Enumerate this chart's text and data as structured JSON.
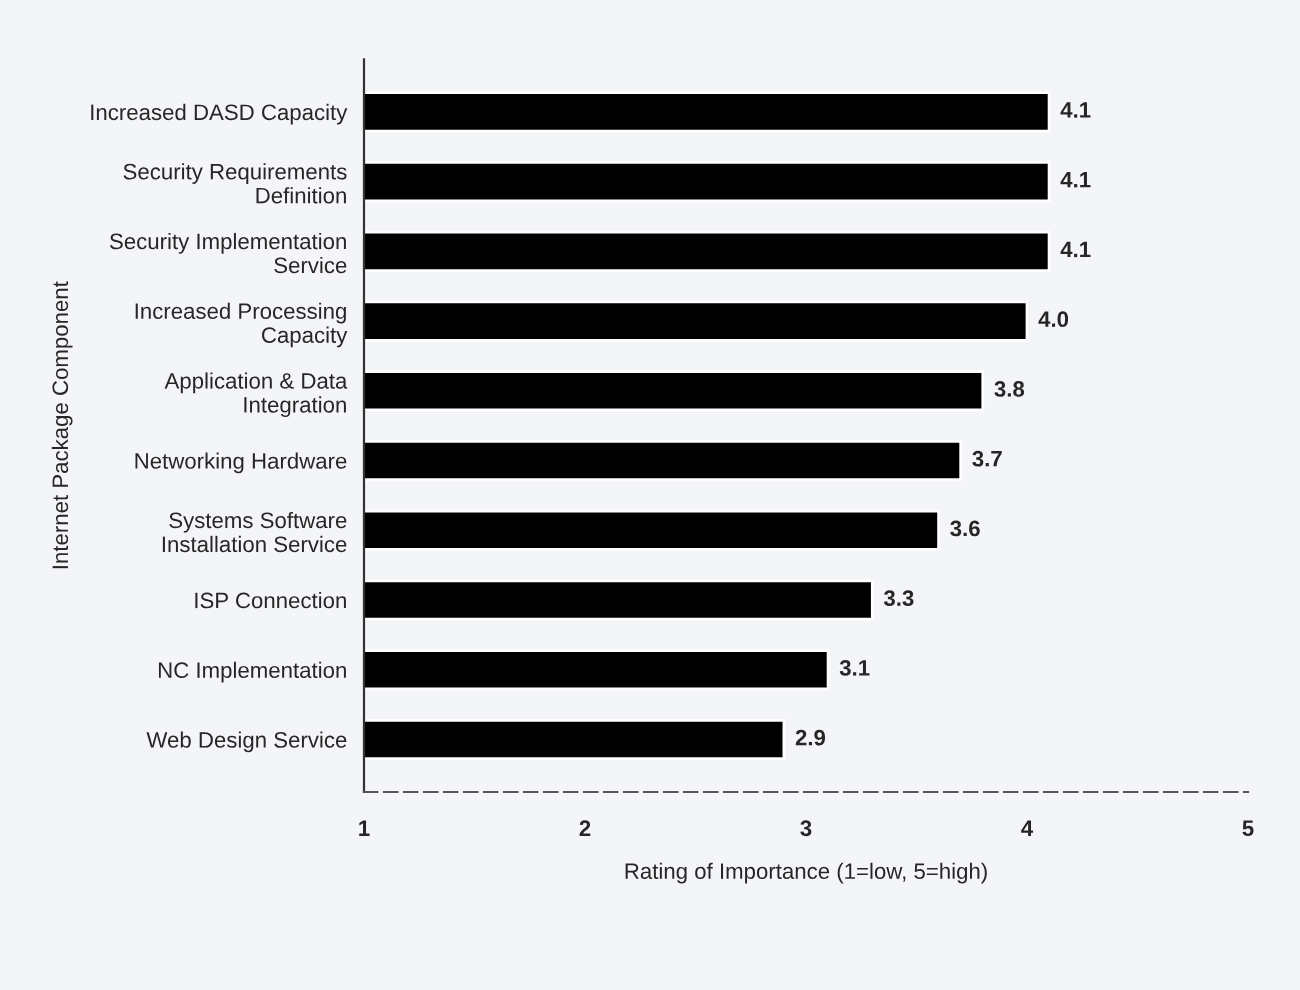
{
  "chart_data": {
    "type": "bar",
    "orientation": "horizontal",
    "ylabel": "Internet Package Component",
    "xlabel": "Rating of Importance (1=low, 5=high)",
    "categories": [
      "Increased DASD Capacity",
      "Security Requirements\nDefinition",
      "Security Implementation\nService",
      "Increased Processing\nCapacity",
      "Application & Data\nIntegration",
      "Networking Hardware",
      "Systems Software\nInstallation Service",
      "ISP Connection",
      "NC Implementation",
      "Web Design Service"
    ],
    "values": [
      4.1,
      4.1,
      4.1,
      4.0,
      3.8,
      3.7,
      3.6,
      3.3,
      3.1,
      2.9
    ],
    "value_labels": [
      "4.1",
      "4.1",
      "4.1",
      "4.0",
      "3.8",
      "3.7",
      "3.6",
      "3.3",
      "3.1",
      "2.9"
    ],
    "color": "#000000",
    "xlim": [
      1,
      5
    ],
    "xticks": [
      1,
      2,
      3,
      4,
      5
    ],
    "grid": false,
    "legend": false
  }
}
